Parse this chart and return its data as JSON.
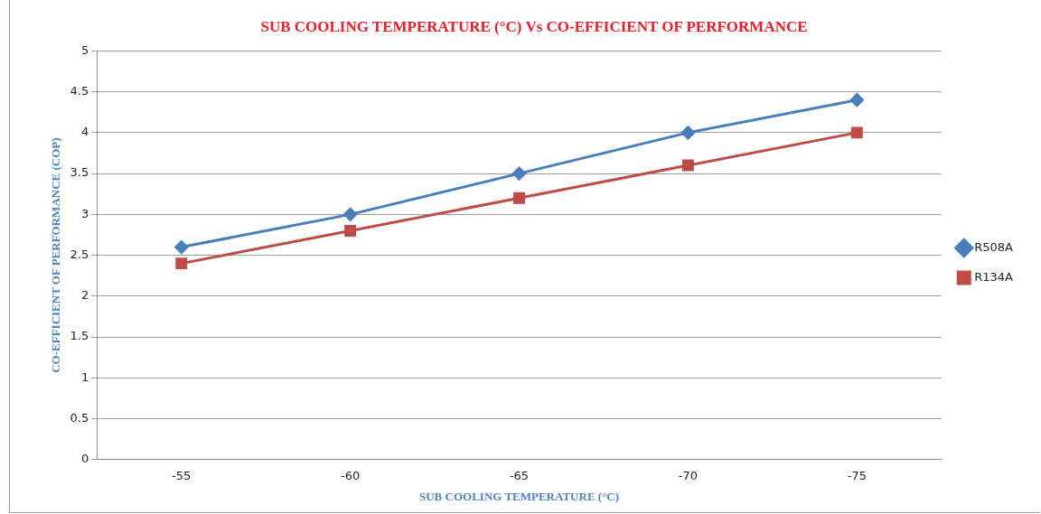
{
  "chart_data": {
    "type": "line",
    "title": "SUB COOLING TEMPERATURE (°C) Vs CO-EFFICIENT OF PERFORMANCE",
    "xlabel": "SUB COOLING TEMPERATURE (°C)",
    "ylabel": "CO-EFFICIENT OF PERFORMANCE (COP)",
    "categories": [
      "-55",
      "-60",
      "-65",
      "-70",
      "-75"
    ],
    "series": [
      {
        "name": "R508A",
        "color": "#4a7ebb",
        "marker": "diamond",
        "values": [
          2.6,
          3.0,
          3.5,
          4.0,
          4.4
        ]
      },
      {
        "name": "R134A",
        "color": "#be4b48",
        "marker": "square",
        "values": [
          2.4,
          2.8,
          3.2,
          3.6,
          4.0
        ]
      }
    ],
    "ylim": [
      0,
      5
    ],
    "yticks": [
      0,
      0.5,
      1,
      1.5,
      2,
      2.5,
      3,
      3.5,
      4,
      4.5,
      5
    ],
    "grid": "y",
    "legend": "right"
  }
}
